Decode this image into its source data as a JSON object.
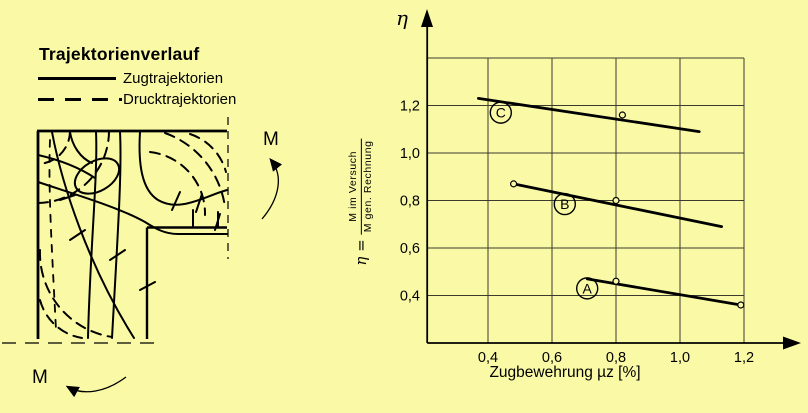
{
  "colors": {
    "background": "#FAFAA6",
    "ink": "#000000",
    "grid": "#3a3a2e"
  },
  "left_panel": {
    "title": "Trajektorienverlauf",
    "legend": [
      {
        "label": "Zugtrajektorien",
        "style": "solid"
      },
      {
        "label": "Drucktrajektorien",
        "style": "dashed"
      }
    ],
    "moment_top": "M",
    "moment_bottom": "M"
  },
  "chart": {
    "eta_symbol": "η",
    "ylabel_prefix": "η =",
    "ylabel_numerator": "M im Versuch",
    "ylabel_denominator": "M gen. Rechnung",
    "xlabel": "Zugbewehrung µz [%]"
  },
  "chart_data": {
    "type": "line",
    "title": "",
    "xlabel": "Zugbewehrung µz [%]",
    "ylabel": "η = M im Versuch / M gen. Rechnung",
    "xlim": [
      0.21,
      1.2
    ],
    "ylim": [
      0.2,
      1.4
    ],
    "grid": true,
    "legend_position": "on-line-circled-letters",
    "xticks": {
      "values": [
        0.4,
        0.6,
        0.8,
        1.0,
        1.2
      ],
      "labels": [
        "0,4",
        "0,6",
        "0,8",
        "1,0",
        "1,2"
      ]
    },
    "yticks": {
      "values": [
        0.4,
        0.6,
        0.8,
        1.0,
        1.2
      ],
      "labels": [
        "0,4",
        "0,6",
        "0,8",
        "1,0",
        "1,2"
      ]
    },
    "xgrid": [
      0.4,
      0.6,
      0.8,
      1.0,
      1.2
    ],
    "ygrid": [
      0.4,
      0.6,
      0.8,
      1.0,
      1.2,
      1.4
    ],
    "series": [
      {
        "name": "C",
        "points": [
          [
            0.37,
            1.23
          ],
          [
            1.06,
            1.09
          ]
        ],
        "markers": [
          [
            0.82,
            1.16
          ]
        ],
        "label_pos": [
          0.44,
          1.17
        ]
      },
      {
        "name": "B",
        "points": [
          [
            0.48,
            0.87
          ],
          [
            1.13,
            0.69
          ]
        ],
        "markers": [
          [
            0.48,
            0.87
          ],
          [
            0.8,
            0.8
          ]
        ],
        "label_pos": [
          0.64,
          0.785
        ]
      },
      {
        "name": "A",
        "points": [
          [
            0.71,
            0.47
          ],
          [
            1.19,
            0.36
          ]
        ],
        "markers": [
          [
            0.8,
            0.46
          ],
          [
            1.19,
            0.36
          ]
        ],
        "label_pos": [
          0.71,
          0.43
        ]
      }
    ]
  }
}
